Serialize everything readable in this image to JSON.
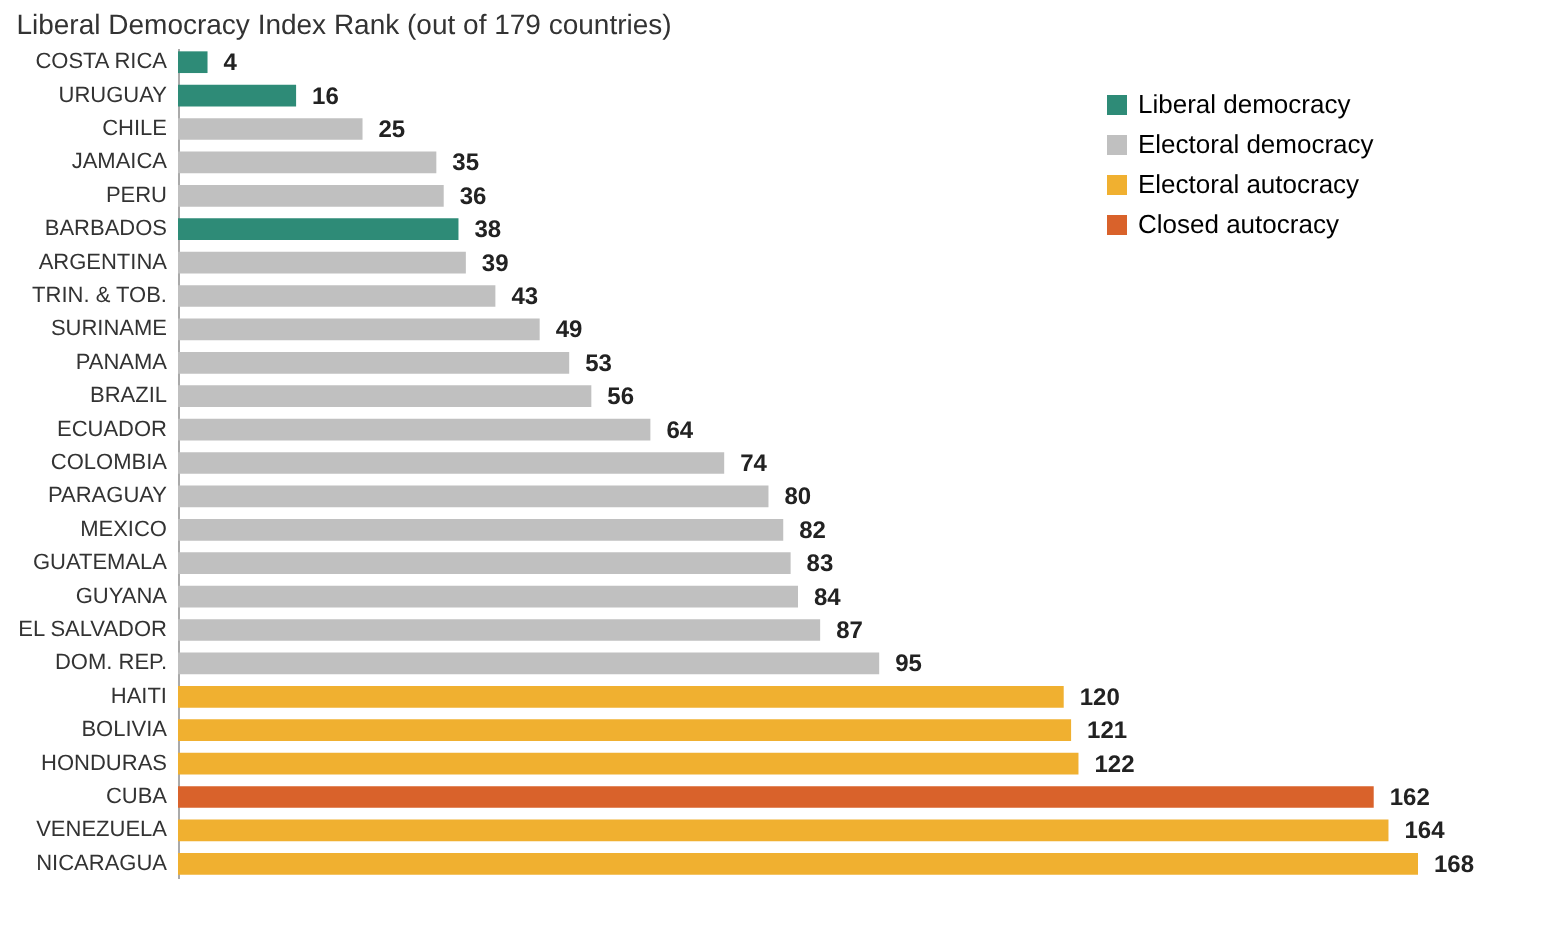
{
  "chart_data": {
    "type": "bar",
    "orientation": "horizontal",
    "title": "Liberal Democracy Index Rank (out of 179 countries)",
    "categories": [
      "COSTA RICA",
      "URUGUAY",
      "CHILE",
      "JAMAICA",
      "PERU",
      "BARBADOS",
      "ARGENTINA",
      "TRIN. & TOB.",
      "SURINAME",
      "PANAMA",
      "BRAZIL",
      "ECUADOR",
      "COLOMBIA",
      "PARAGUAY",
      "MEXICO",
      "GUATEMALA",
      "GUYANA",
      "EL SALVADOR",
      "DOM. REP.",
      "HAITI",
      "BOLIVIA",
      "HONDURAS",
      "CUBA",
      "VENEZUELA",
      "NICARAGUA"
    ],
    "series": [
      {
        "name": "Liberal democracy",
        "color": "#2e8b77",
        "values": [
          4,
          16,
          null,
          null,
          null,
          38,
          null,
          null,
          null,
          null,
          null,
          null,
          null,
          null,
          null,
          null,
          null,
          null,
          null,
          null,
          null,
          null,
          null,
          null,
          null
        ]
      },
      {
        "name": "Electoral democracy",
        "color": "#c0c0c0",
        "values": [
          null,
          null,
          25,
          35,
          36,
          null,
          39,
          43,
          49,
          53,
          56,
          64,
          74,
          80,
          82,
          83,
          84,
          87,
          95,
          null,
          null,
          null,
          null,
          null,
          null
        ]
      },
      {
        "name": "Electoral autocracy",
        "color": "#f0b030",
        "values": [
          null,
          null,
          null,
          null,
          null,
          null,
          null,
          null,
          null,
          null,
          null,
          null,
          null,
          null,
          null,
          null,
          null,
          null,
          null,
          120,
          121,
          122,
          null,
          164,
          168
        ]
      },
      {
        "name": "Closed autocracy",
        "color": "#d9622b",
        "values": [
          null,
          null,
          null,
          null,
          null,
          null,
          null,
          null,
          null,
          null,
          null,
          null,
          null,
          null,
          null,
          null,
          null,
          null,
          null,
          null,
          null,
          null,
          162,
          null,
          null
        ]
      }
    ],
    "data_labels": true,
    "legend": "top right",
    "tick_labels": "y"
  }
}
